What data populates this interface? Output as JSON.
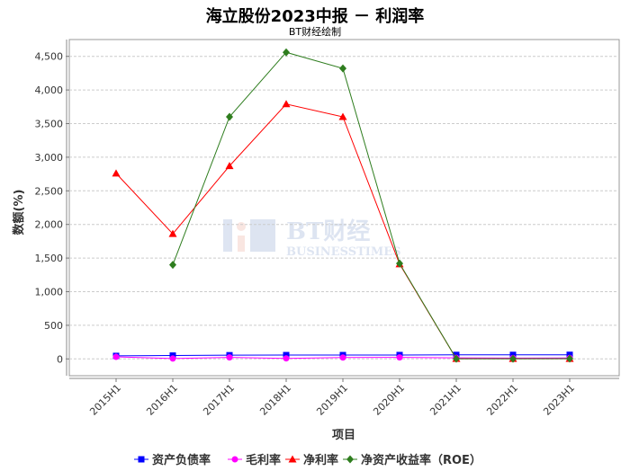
{
  "chart_data": {
    "type": "line",
    "title": "海立股份2023中报 － 利润率",
    "subtitle": "BT财经绘制",
    "xlabel": "项目",
    "ylabel": "数额(%)",
    "categories": [
      "2015H1",
      "2016H1",
      "2017H1",
      "2018H1",
      "2019H1",
      "2020H1",
      "2021H1",
      "2022H1",
      "2023H1"
    ],
    "ylim": [
      -250,
      4750
    ],
    "yticks": [
      0,
      500,
      1000,
      1500,
      2000,
      2500,
      3000,
      3500,
      4000,
      4500
    ],
    "ytick_labels": [
      "0",
      "500",
      "1,000",
      "1,500",
      "2,000",
      "2,500",
      "3,000",
      "3,500",
      "4,000",
      "4,500"
    ],
    "grid": true,
    "legend_position": "bottom",
    "watermark": "BT财经 BUSINESSTIMES",
    "series": [
      {
        "name": "资产负债率",
        "color": "#0000ff",
        "marker": "square",
        "values": [
          45,
          50,
          55,
          57,
          57,
          58,
          60,
          60,
          61
        ]
      },
      {
        "name": "毛利率",
        "color": "#ff00ff",
        "marker": "circle",
        "values": [
          30,
          5,
          22,
          8,
          20,
          22,
          15,
          13,
          14
        ]
      },
      {
        "name": "净利率",
        "color": "#ff0000",
        "marker": "triangle",
        "values": [
          2760,
          1860,
          2870,
          3790,
          3600,
          1410,
          2,
          2,
          3
        ]
      },
      {
        "name": "净资产收益率（ROE）",
        "color": "#2e7d1e",
        "marker": "diamond",
        "values": [
          null,
          1400,
          3600,
          4560,
          4320,
          1420,
          3,
          3,
          4
        ]
      }
    ]
  }
}
